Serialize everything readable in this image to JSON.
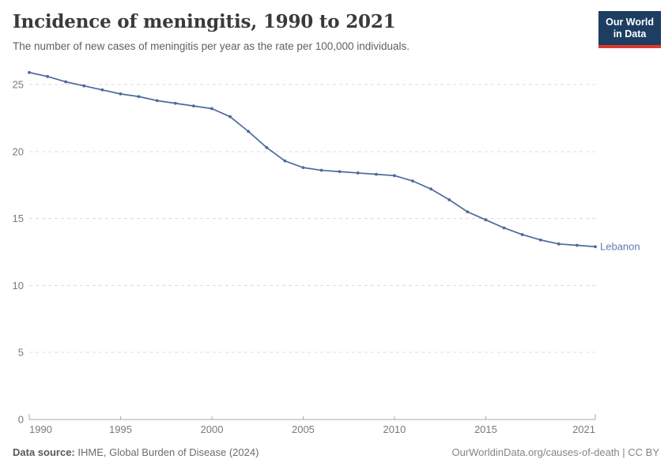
{
  "header": {
    "title": "Incidence of meningitis, 1990 to 2021",
    "subtitle": "The number of new cases of meningitis per year as the rate per 100,000 individuals."
  },
  "logo": {
    "line1": "Our World",
    "line2": "in Data",
    "bg_color": "#1d3d63",
    "stripe_color": "#dc3a2b"
  },
  "chart_data": {
    "type": "line",
    "title": "Incidence of meningitis, 1990 to 2021",
    "xlabel": "",
    "ylabel": "",
    "x": [
      1990,
      1991,
      1992,
      1993,
      1994,
      1995,
      1996,
      1997,
      1998,
      1999,
      2000,
      2001,
      2002,
      2003,
      2004,
      2005,
      2006,
      2007,
      2008,
      2009,
      2010,
      2011,
      2012,
      2013,
      2014,
      2015,
      2016,
      2017,
      2018,
      2019,
      2020,
      2021
    ],
    "series": [
      {
        "name": "Lebanon",
        "color": "#4c6a9c",
        "label_color": "#5b7cb4",
        "values": [
          25.9,
          25.6,
          25.2,
          24.9,
          24.6,
          24.3,
          24.1,
          23.8,
          23.6,
          23.4,
          23.2,
          22.6,
          21.5,
          20.3,
          19.3,
          18.8,
          18.6,
          18.5,
          18.4,
          18.3,
          18.2,
          17.8,
          17.2,
          16.4,
          15.5,
          14.9,
          14.3,
          13.8,
          13.4,
          13.1,
          13.0,
          12.9
        ]
      }
    ],
    "xticks": [
      1990,
      1995,
      2000,
      2005,
      2010,
      2015,
      2021
    ],
    "yticks": [
      0,
      5,
      10,
      15,
      20,
      25
    ],
    "xlim": [
      1990,
      2021
    ],
    "ylim": [
      0,
      26.5
    ],
    "grid": "horizontal-dashed",
    "legend_position": "end-of-line",
    "marker": "dot",
    "grid_color": "#dcdcdc",
    "axis_color": "#a9a9a9",
    "tick_text_color": "#7a7a7a"
  },
  "footer": {
    "source_label": "Data source:",
    "source": "IHME, Global Burden of Disease (2024)",
    "link": "OurWorldinData.org/causes-of-death | CC BY"
  }
}
